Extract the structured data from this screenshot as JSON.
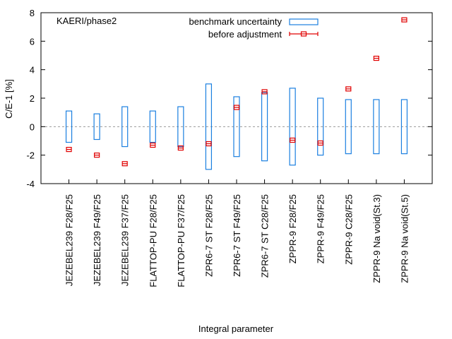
{
  "chart_data": {
    "type": "errorbar-box",
    "title": "KAERI/phase2",
    "xlabel": "Integral parameter",
    "ylabel": "C/E-1 [%]",
    "ylim": [
      -4,
      8
    ],
    "yticks": [
      -4,
      -2,
      0,
      2,
      4,
      6,
      8
    ],
    "xlim": [
      0,
      14
    ],
    "zero_line": true,
    "legend_position": "top-center",
    "categories": [
      "JEZEBEL239 F28/F25",
      "JEZEBEL239 F49/F25",
      "JEZEBEL239 F37/F25",
      "FLATTOP-PU F28/F25",
      "FLATTOP-PU F37/F25",
      "ZPR6-7 ST F28/F25",
      "ZPR6-7 ST F49/F25",
      "ZPR6-7 ST C28/F25",
      "ZPPR-9 F28/F25",
      "ZPPR-9 F49/F25",
      "ZPPR-9 C28/F25",
      "ZPPR-9 Na void(St.3)",
      "ZPPR-9 Na void(St.5)"
    ],
    "series": [
      {
        "name": "benchmark uncertainty",
        "kind": "box",
        "color": "#1a7fe0",
        "values": [
          1.1,
          0.9,
          1.4,
          1.1,
          1.4,
          3.0,
          2.1,
          2.4,
          2.7,
          2.0,
          1.9,
          1.9,
          1.9
        ]
      },
      {
        "name": "before adjustment",
        "kind": "point",
        "color": "#e00000",
        "values": [
          -1.6,
          -2.0,
          -2.6,
          -1.3,
          -1.5,
          -1.2,
          1.35,
          2.45,
          -0.95,
          -1.15,
          2.65,
          4.8,
          7.5
        ]
      }
    ]
  }
}
